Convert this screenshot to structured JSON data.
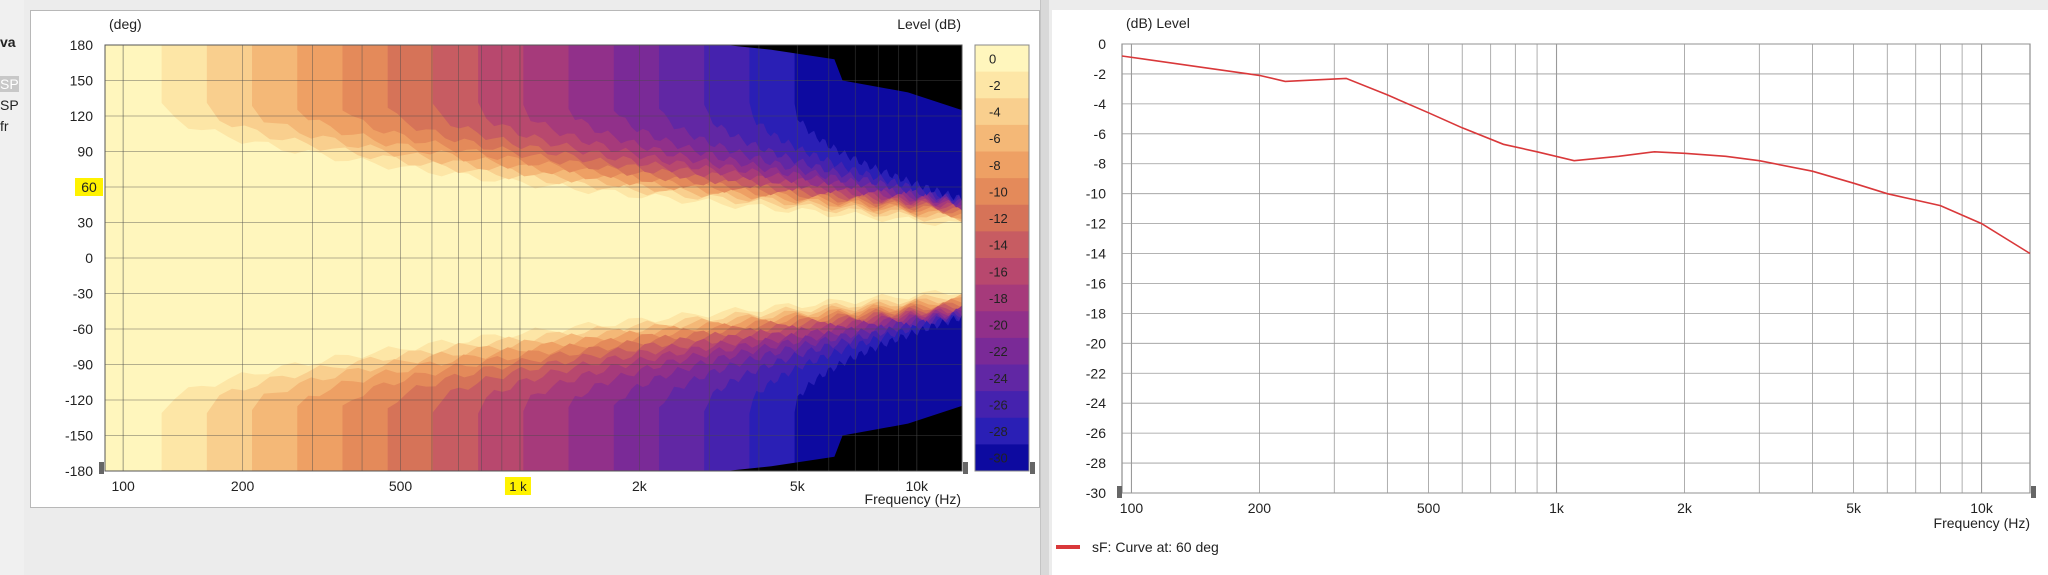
{
  "sidebar": {
    "frag1": "va",
    "frag2": "SP",
    "frag3": "SP",
    "frag4": "fr"
  },
  "chart_data": [
    {
      "type": "heatmap",
      "title": "",
      "xlabel": "Frequency  (Hz)",
      "ylabel": "(deg)",
      "x_scale": "log",
      "xlim": [
        90,
        13000
      ],
      "ylim": [
        -180,
        180
      ],
      "x_ticks": [
        {
          "value": 100,
          "label": "100"
        },
        {
          "value": 200,
          "label": "200"
        },
        {
          "value": 500,
          "label": "500"
        },
        {
          "value": 1000,
          "label": "1k"
        },
        {
          "value": 2000,
          "label": "2k"
        },
        {
          "value": 5000,
          "label": "5k"
        },
        {
          "value": 10000,
          "label": "10k"
        }
      ],
      "y_ticks": [
        180,
        150,
        120,
        90,
        60,
        30,
        0,
        -30,
        -60,
        -90,
        -120,
        -150,
        -180
      ],
      "colorbar": {
        "label": "Level  (dB)",
        "levels": [
          0,
          -2,
          -4,
          -6,
          -8,
          -10,
          -12,
          -14,
          -16,
          -18,
          -20,
          -22,
          -24,
          -26,
          -28,
          -30
        ],
        "colors": [
          "#fff6bd",
          "#fde6a6",
          "#f9cf8e",
          "#f4b877",
          "#eea064",
          "#e48a5a",
          "#d67358",
          "#c75c62",
          "#b8486e",
          "#a63a7b",
          "#91308a",
          "#7a2a97",
          "#6127a4",
          "#4522ae",
          "#2a1fb5",
          "#0d0aa0"
        ]
      },
      "cursor": {
        "angle": 60,
        "angle_label": "60",
        "freq": 1000,
        "freq_label": "1 k"
      }
    },
    {
      "type": "line",
      "title": "",
      "xlabel": "Frequency  (Hz)",
      "ylabel": "(dB)  Level",
      "x_scale": "log",
      "xlim": [
        95,
        13000
      ],
      "ylim": [
        -30,
        0
      ],
      "x_ticks": [
        {
          "value": 100,
          "label": "100"
        },
        {
          "value": 200,
          "label": "200"
        },
        {
          "value": 500,
          "label": "500"
        },
        {
          "value": 1000,
          "label": "1k"
        },
        {
          "value": 2000,
          "label": "2k"
        },
        {
          "value": 5000,
          "label": "5k"
        },
        {
          "value": 10000,
          "label": "10k"
        }
      ],
      "y_ticks": [
        0,
        -2,
        -4,
        -6,
        -8,
        -10,
        -12,
        -14,
        -16,
        -18,
        -20,
        -22,
        -24,
        -26,
        -28,
        -30
      ],
      "grid": true,
      "series": [
        {
          "name": "sF: Curve at: 60 deg",
          "color": "#d9383a",
          "x": [
            95,
            150,
            200,
            230,
            270,
            320,
            400,
            500,
            600,
            750,
            900,
            1100,
            1400,
            1700,
            2000,
            2500,
            3000,
            4000,
            5000,
            6000,
            8000,
            10000,
            13000
          ],
          "y": [
            -0.8,
            -1.6,
            -2.1,
            -2.5,
            -2.4,
            -2.3,
            -3.4,
            -4.6,
            -5.6,
            -6.7,
            -7.2,
            -7.8,
            -7.5,
            -7.2,
            -7.3,
            -7.5,
            -7.8,
            -8.5,
            -9.3,
            -10.0,
            -10.8,
            -12.0,
            -14.0
          ]
        }
      ],
      "legend": {
        "placement": "bottom-left",
        "label": "sF: Curve at: 60 deg"
      }
    }
  ]
}
